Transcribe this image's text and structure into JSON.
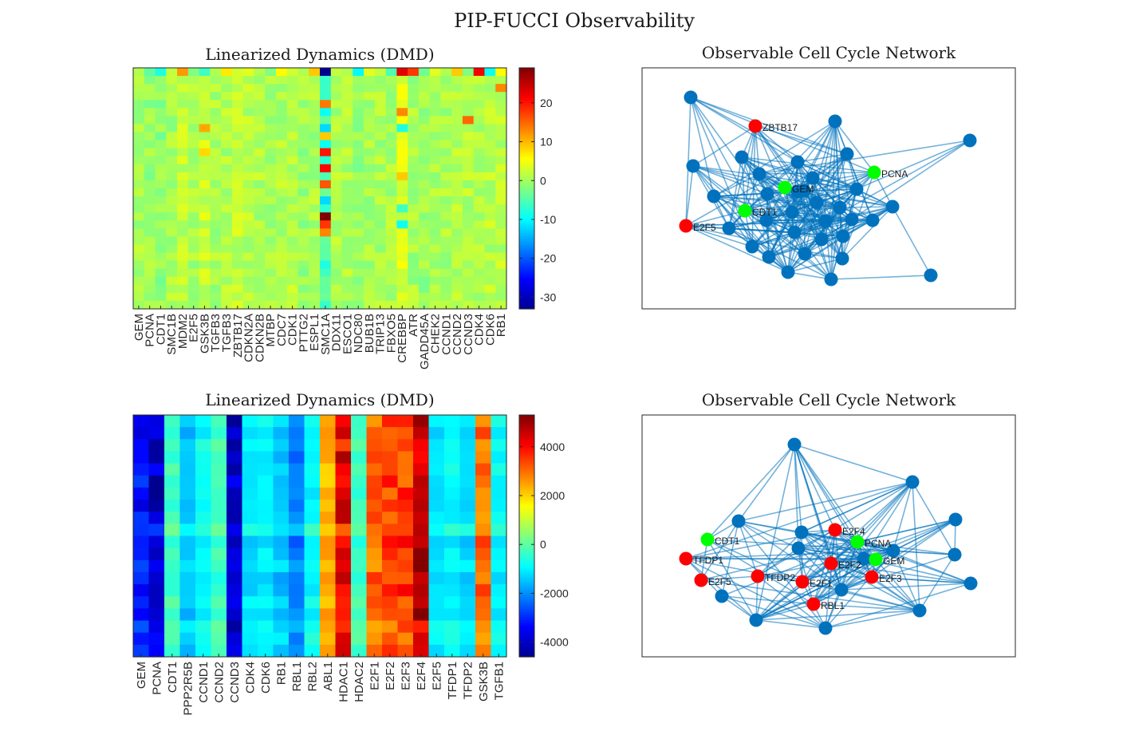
{
  "figure_title": "PIP-FUCCI Observability",
  "colorscale": [
    "#00008f",
    "#0000ff",
    "#0080ff",
    "#00ffff",
    "#80ff80",
    "#ffff00",
    "#ff8000",
    "#ff0000",
    "#800000"
  ],
  "node_colors": {
    "default": "#0072bd",
    "observed": "#00ff00",
    "actuated": "#ff0000",
    "edge": "#0072bd"
  },
  "chart_data": [
    {
      "type": "heatmap",
      "title": "Linearized Dynamics (DMD)",
      "xlabel": "",
      "ylabel": "",
      "columns": [
        "GEM",
        "PCNA",
        "CDT1",
        "SMC1B",
        "MDM2",
        "E2F5",
        "GSK3B",
        "TGFB3",
        "TGFB3",
        "ZBTB17",
        "CDKN2A",
        "CDKN2B",
        "MTBP",
        "CDC7",
        "CDK1",
        "PTTG2",
        "ESPL1",
        "SMC1A",
        "DDX11",
        "ESCO1",
        "NDC80",
        "BUB1B",
        "TRIP13",
        "FBXO5",
        "CREBBP",
        "ATR",
        "GADD45A",
        "CHEK2",
        "CCND1",
        "CCND2",
        "CCND3",
        "CDK4",
        "CDK6",
        "RB1"
      ],
      "n_rows": 30,
      "clim": [
        -33,
        29
      ],
      "colorbar_ticks": [
        20,
        10,
        0,
        -10,
        -20,
        -30
      ],
      "column_profile": [
        0.6,
        -0.4,
        -1.2,
        0.5,
        1.8,
        0.3,
        2.5,
        0.6,
        0.9,
        2.0,
        1.2,
        0.8,
        0.4,
        0.9,
        1.3,
        -0.2,
        0.5,
        -5.0,
        1.0,
        0.6,
        -0.6,
        0.3,
        0.6,
        0.8,
        3.8,
        0.5,
        -0.4,
        0.3,
        0.6,
        1.0,
        1.2,
        0.9,
        1.4,
        1.5
      ],
      "top_row": [
        1,
        -4,
        -8,
        2,
        12,
        -2,
        -6,
        1,
        7,
        3,
        4,
        1,
        -2,
        6,
        3,
        1,
        9,
        -33,
        2,
        1,
        -10,
        4,
        2,
        -5,
        23,
        18,
        -3,
        4,
        1,
        9,
        -2,
        22,
        -9,
        6
      ],
      "notable_cells": [
        {
          "row": 4,
          "col": 17,
          "value": 14
        },
        {
          "row": 5,
          "col": 17,
          "value": -9
        },
        {
          "row": 7,
          "col": 17,
          "value": -12
        },
        {
          "row": 8,
          "col": 17,
          "value": 9
        },
        {
          "row": 9,
          "col": 17,
          "value": -9
        },
        {
          "row": 10,
          "col": 17,
          "value": 20
        },
        {
          "row": 12,
          "col": 17,
          "value": 21
        },
        {
          "row": 13,
          "col": 17,
          "value": -5
        },
        {
          "row": 14,
          "col": 17,
          "value": 16
        },
        {
          "row": 15,
          "col": 17,
          "value": -3
        },
        {
          "row": 16,
          "col": 17,
          "value": -12
        },
        {
          "row": 17,
          "col": 17,
          "value": -7
        },
        {
          "row": 18,
          "col": 17,
          "value": 29
        },
        {
          "row": 19,
          "col": 17,
          "value": 18
        },
        {
          "row": 20,
          "col": 17,
          "value": 13
        },
        {
          "row": 22,
          "col": 17,
          "value": -4
        },
        {
          "row": 24,
          "col": 17,
          "value": -8
        },
        {
          "row": 7,
          "col": 6,
          "value": 11
        },
        {
          "row": 10,
          "col": 6,
          "value": 8
        },
        {
          "row": 7,
          "col": 24,
          "value": -8
        },
        {
          "row": 13,
          "col": 24,
          "value": 9
        },
        {
          "row": 17,
          "col": 24,
          "value": -6
        },
        {
          "row": 19,
          "col": 24,
          "value": -9
        },
        {
          "row": 5,
          "col": 24,
          "value": 13
        },
        {
          "row": 6,
          "col": 30,
          "value": 15
        },
        {
          "row": 2,
          "col": 33,
          "value": 13
        }
      ]
    },
    {
      "type": "network",
      "title": "Observable Cell Cycle Network",
      "labeled_nodes": [
        {
          "label": "ZBTB17",
          "role": "actuated"
        },
        {
          "label": "PCNA",
          "role": "observed"
        },
        {
          "label": "GEM",
          "role": "observed"
        },
        {
          "label": "CDT1",
          "role": "observed"
        },
        {
          "label": "E2F5",
          "role": "actuated"
        }
      ],
      "node_count": 41
    },
    {
      "type": "heatmap",
      "title": "Linearized Dynamics (DMD)",
      "xlabel": "",
      "ylabel": "",
      "columns": [
        "GEM",
        "PCNA",
        "CDT1",
        "PPP2R5B",
        "CCND1",
        "CCND2",
        "CCND3",
        "CDK4",
        "CDK6",
        "RB1",
        "RBL1",
        "RBL2",
        "ABL1",
        "HDAC1",
        "HDAC2",
        "E2F1",
        "E2F2",
        "E2F3",
        "E2F4",
        "E2F5",
        "TFDP1",
        "TFDP2",
        "GSK3B",
        "TGFB1"
      ],
      "n_rows": 20,
      "clim": [
        -4600,
        5300
      ],
      "colorbar_ticks": [
        4000,
        2000,
        0,
        -2000,
        -4000
      ],
      "column_means": [
        -3200,
        -3900,
        -300,
        -1400,
        -800,
        -300,
        -4100,
        -1200,
        -1000,
        -1400,
        -2100,
        -900,
        2300,
        4100,
        -300,
        3100,
        3400,
        3400,
        4600,
        -1100,
        -900,
        -1200,
        3000,
        -900
      ]
    },
    {
      "type": "network",
      "title": "Observable Cell Cycle Network",
      "labeled_nodes": [
        {
          "label": "E2F4",
          "role": "actuated"
        },
        {
          "label": "CDT1",
          "role": "observed"
        },
        {
          "label": "PCNA",
          "role": "observed"
        },
        {
          "label": "TFDP1",
          "role": "actuated"
        },
        {
          "label": "GEM",
          "role": "observed"
        },
        {
          "label": "E2F2",
          "role": "actuated"
        },
        {
          "label": "E2F5",
          "role": "actuated"
        },
        {
          "label": "TFDP2",
          "role": "actuated"
        },
        {
          "label": "E2F1",
          "role": "actuated"
        },
        {
          "label": "E2F3",
          "role": "actuated"
        },
        {
          "label": "RBL1",
          "role": "actuated"
        }
      ],
      "node_count": 24
    }
  ]
}
